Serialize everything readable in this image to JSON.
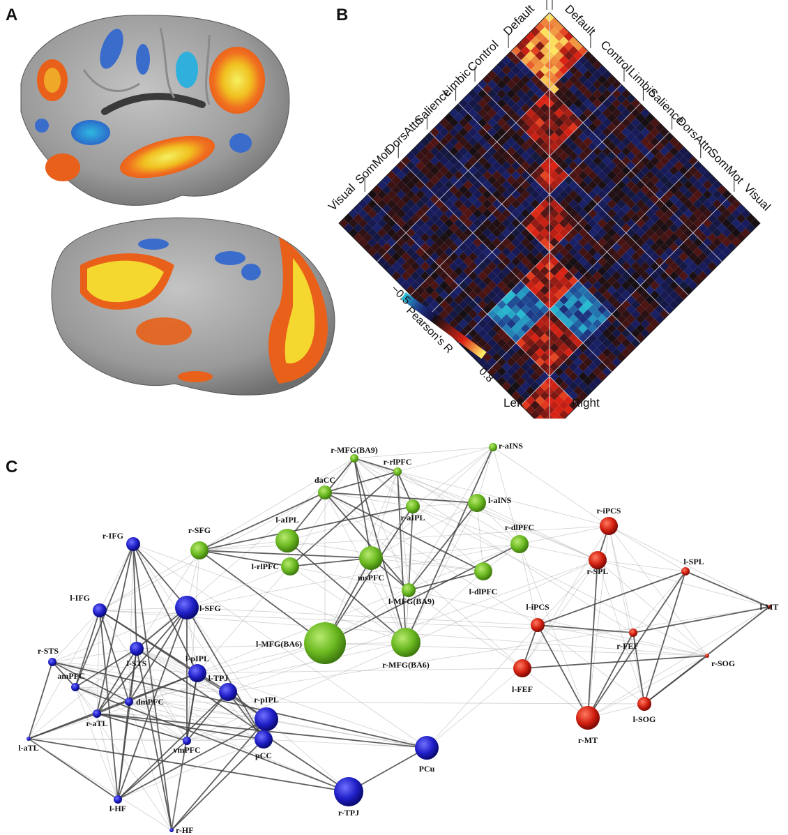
{
  "panels": {
    "a": {
      "letter": "A"
    },
    "b": {
      "letter": "B"
    },
    "c": {
      "letter": "C"
    }
  },
  "matrix": {
    "networks_left": [
      "Default",
      "Control",
      "Limbic",
      "Salience",
      "DorsAttn",
      "SomMot",
      "Visual"
    ],
    "networks_right": [
      "Default",
      "Control",
      "Limbic",
      "Salience",
      "DorsAttn",
      "SomMot",
      "Visual"
    ],
    "bottom_left": "Left",
    "bottom_right": "Right",
    "colorbar": {
      "label": "Pearson's R",
      "min_label": "−0.5",
      "max_label": "0.8",
      "min": -0.5,
      "max": 0.8
    }
  },
  "network": {
    "colors": {
      "default": "#1f1fc8",
      "salience": "#6ab820",
      "dorsal_attention": "#d22010"
    },
    "nodes": [
      {
        "id": "r-MFG(BA9)",
        "label": "r-MFG(BA9)",
        "group": "salience",
        "size": 1
      },
      {
        "id": "r-aINS",
        "label": "r-aINS",
        "group": "salience",
        "size": 1
      },
      {
        "id": "r-rlPFC",
        "label": "r-rlPFC",
        "group": "salience",
        "size": 1
      },
      {
        "id": "daCC",
        "label": "daCC",
        "group": "salience",
        "size": 2
      },
      {
        "id": "l-aINS",
        "label": "l-aINS",
        "group": "salience",
        "size": 3
      },
      {
        "id": "r-aIPL",
        "label": "r-aIPL",
        "group": "salience",
        "size": 2
      },
      {
        "id": "l-aIPL",
        "label": "l-aIPL",
        "group": "salience",
        "size": 4
      },
      {
        "id": "r-dlPFC",
        "label": "r-dlPFC",
        "group": "salience",
        "size": 3
      },
      {
        "id": "r-SFG",
        "label": "r-SFG",
        "group": "salience",
        "size": 3
      },
      {
        "id": "l-rlPFC",
        "label": "l-rlPFC",
        "group": "salience",
        "size": 3
      },
      {
        "id": "msPFC",
        "label": "msPFC",
        "group": "salience",
        "size": 4
      },
      {
        "id": "l-dlPFC",
        "label": "l-dlPFC",
        "group": "salience",
        "size": 3
      },
      {
        "id": "l-MFG(BA9)",
        "label": "l-MFG(BA9)",
        "group": "salience",
        "size": 2
      },
      {
        "id": "l-MFG(BA6)",
        "label": "l-MFG(BA6)",
        "group": "salience",
        "size": 6
      },
      {
        "id": "r-MFG(BA6)",
        "label": "r-MFG(BA6)",
        "group": "salience",
        "size": 5
      },
      {
        "id": "r-iPCS",
        "label": "r-iPCS",
        "group": "dorsal_attention",
        "size": 3
      },
      {
        "id": "r-SPL",
        "label": "r-SPL",
        "group": "dorsal_attention",
        "size": 3
      },
      {
        "id": "l-SPL",
        "label": "l-SPL",
        "group": "dorsal_attention",
        "size": 1
      },
      {
        "id": "l-MT",
        "label": "l-MT",
        "group": "dorsal_attention",
        "size": 0
      },
      {
        "id": "l-iPCS",
        "label": "l-iPCS",
        "group": "dorsal_attention",
        "size": 2
      },
      {
        "id": "r-FEF",
        "label": "r-FEF",
        "group": "dorsal_attention",
        "size": 1
      },
      {
        "id": "r-SOG",
        "label": "r-SOG",
        "group": "dorsal_attention",
        "size": 0
      },
      {
        "id": "l-FEF",
        "label": "l-FEF",
        "group": "dorsal_attention",
        "size": 3
      },
      {
        "id": "l-SOG",
        "label": "l-SOG",
        "group": "dorsal_attention",
        "size": 2
      },
      {
        "id": "r-MT",
        "label": "r-MT",
        "group": "dorsal_attention",
        "size": 4
      },
      {
        "id": "r-IFG",
        "label": "r-IFG",
        "group": "default",
        "size": 2
      },
      {
        "id": "l-IFG",
        "label": "l-IFG",
        "group": "default",
        "size": 2
      },
      {
        "id": "l-SFG",
        "label": "l-SFG",
        "group": "default",
        "size": 4
      },
      {
        "id": "r-STS",
        "label": "r-STS",
        "group": "default",
        "size": 1
      },
      {
        "id": "l-STS",
        "label": "l-STS",
        "group": "default",
        "size": 2
      },
      {
        "id": "l-pIPL",
        "label": "l-pIPL",
        "group": "default",
        "size": 3
      },
      {
        "id": "amPFC",
        "label": "amPFC",
        "group": "default",
        "size": 1
      },
      {
        "id": "l-TPJ",
        "label": "l-TPJ",
        "group": "default",
        "size": 3
      },
      {
        "id": "dmPFC",
        "label": "dmPFC",
        "group": "default",
        "size": 1
      },
      {
        "id": "r-pIPL",
        "label": "r-pIPL",
        "group": "default",
        "size": 4
      },
      {
        "id": "l-aTL",
        "label": "l-aTL",
        "group": "default",
        "size": 0
      },
      {
        "id": "r-aTL",
        "label": "r-aTL",
        "group": "default",
        "size": 1
      },
      {
        "id": "vmPFC",
        "label": "vmPFC",
        "group": "default",
        "size": 1
      },
      {
        "id": "pCC",
        "label": "pCC",
        "group": "default",
        "size": 3
      },
      {
        "id": "PCu",
        "label": "PCu",
        "group": "default",
        "size": 4
      },
      {
        "id": "l-HF",
        "label": "l-HF",
        "group": "default",
        "size": 1
      },
      {
        "id": "r-TPJ",
        "label": "r-TPJ",
        "group": "default",
        "size": 5
      },
      {
        "id": "r-HF",
        "label": "r-HF",
        "group": "default",
        "size": 0
      }
    ]
  }
}
